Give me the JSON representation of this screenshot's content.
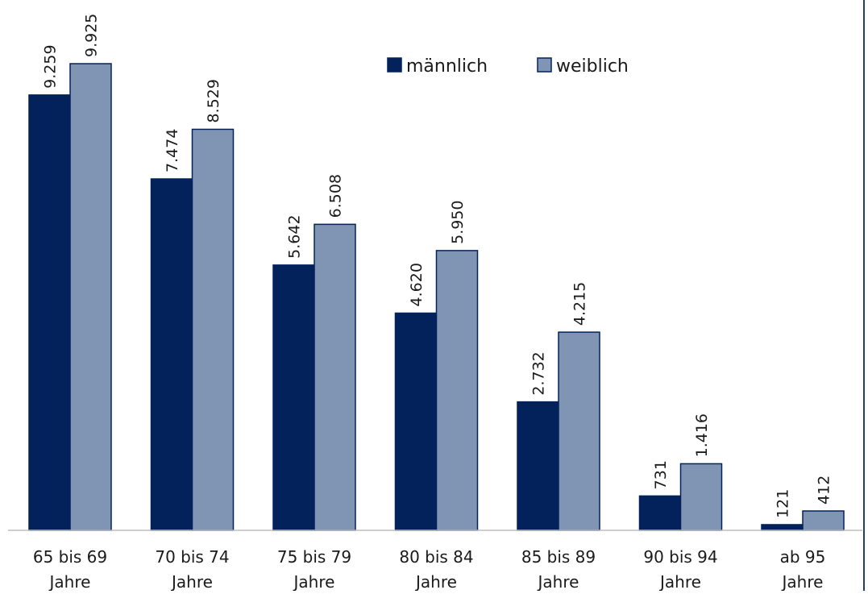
{
  "chart_data": {
    "type": "bar",
    "categories": [
      [
        "65 bis 69",
        "Jahre"
      ],
      [
        "70 bis 74",
        "Jahre"
      ],
      [
        "75 bis 79",
        "Jahre"
      ],
      [
        "80 bis 84",
        "Jahre"
      ],
      [
        "85 bis 89",
        "Jahre"
      ],
      [
        "90 bis 94",
        "Jahre"
      ],
      [
        "ab 95",
        "Jahre"
      ]
    ],
    "series": [
      {
        "name": "männlich",
        "color": "#03225c",
        "values": [
          9259,
          7474,
          5642,
          4620,
          2732,
          731,
          121
        ],
        "labels": [
          "9.259",
          "7.474",
          "5.642",
          "4.620",
          "2.732",
          "731",
          "121"
        ]
      },
      {
        "name": "weiblich",
        "color": "#8095b3",
        "values": [
          9925,
          8529,
          6508,
          5950,
          4215,
          1416,
          412
        ],
        "labels": [
          "9.925",
          "8.529",
          "6.508",
          "5.950",
          "4.215",
          "1.416",
          "412"
        ]
      }
    ],
    "title": "",
    "xlabel": "",
    "ylabel": "",
    "ylim": [
      0,
      10500
    ],
    "grid": false,
    "legend_position": "top-center"
  }
}
